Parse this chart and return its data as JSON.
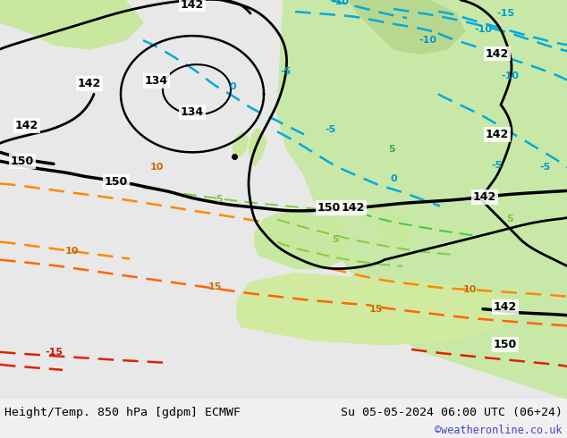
{
  "title_left": "Height/Temp. 850 hPa [gdpm] ECMWF",
  "title_right": "Su 05-05-2024 06:00 UTC (06+24)",
  "credit": "©weatheronline.co.uk",
  "figsize": [
    6.34,
    4.9
  ],
  "dpi": 100,
  "bg_color": "#f0f0f0",
  "map_bg_light": "#e8e8e8",
  "map_bg_green": "#c8e6a0",
  "credit_color": "#4444cc",
  "black_contour_color": "#000000",
  "cyan_contour_color": "#00aacc",
  "green_contour_color": "#88cc44",
  "orange_contour_color": "#ff8800",
  "red_contour_color": "#dd2200"
}
